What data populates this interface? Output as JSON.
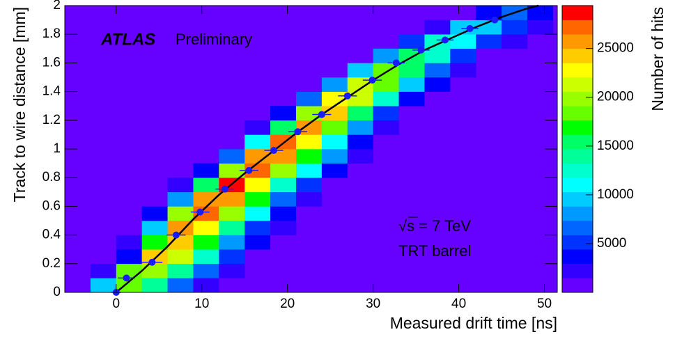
{
  "chart_data": {
    "type": "heatmap",
    "x_label": "Measured drift time [ns]",
    "y_label": "Track to wire distance [mm]",
    "z_label": "Number of hits",
    "annotations": [
      "ATLAS",
      "Preliminary",
      "√s = 7 TeV",
      "TRT barrel"
    ],
    "xlim": [
      -6,
      51.5
    ],
    "ylim": [
      0,
      2
    ],
    "zlim": [
      0,
      29400
    ],
    "xticks": [
      0,
      10,
      20,
      30,
      40,
      50
    ],
    "yticks": [
      0,
      0.2,
      0.4,
      0.6,
      0.8,
      1,
      1.2,
      1.4,
      1.6,
      1.8,
      2
    ],
    "zticks": [
      5000,
      10000,
      15000,
      20000,
      25000
    ],
    "xbins": [
      -6,
      -3,
      0,
      3,
      6,
      9,
      12,
      15,
      18,
      21,
      24,
      27,
      30,
      33,
      36,
      39,
      42,
      45,
      48,
      51
    ],
    "ybins": [
      0,
      0.1,
      0.2,
      0.3,
      0.4,
      0.5,
      0.6,
      0.7,
      0.8,
      0.9,
      1,
      1.1,
      1.2,
      1.3,
      1.4,
      1.5,
      1.6,
      1.7,
      1.8,
      1.9,
      2
    ],
    "palette": [
      "#6600ff",
      "#3300ff",
      "#0000ff",
      "#0033ff",
      "#0066ff",
      "#0099ff",
      "#00ccff",
      "#00ffff",
      "#00ffcc",
      "#00ff99",
      "#00ff66",
      "#00ff00",
      "#66ff00",
      "#99ff00",
      "#ccff00",
      "#ffff00",
      "#ffcc00",
      "#ff9900",
      "#ff6600",
      "#ff0000"
    ],
    "z": [
      [
        null,
        9300,
        18600,
        13900,
        7200,
        2500,
        630,
        null,
        null,
        null,
        null,
        null,
        null,
        null,
        null,
        null,
        null,
        null,
        null
      ],
      [
        null,
        1500,
        18000,
        20400,
        13400,
        6100,
        1900,
        null,
        null,
        null,
        null,
        null,
        null,
        null,
        null,
        null,
        null,
        null,
        null
      ],
      [
        null,
        1000,
        4200,
        24000,
        20600,
        12500,
        5000,
        1400,
        null,
        null,
        null,
        null,
        null,
        null,
        null,
        null,
        null,
        null,
        null
      ],
      [
        null,
        700,
        1900,
        17500,
        24200,
        17500,
        8800,
        3000,
        700,
        null,
        null,
        null,
        null,
        null,
        null,
        null,
        null,
        null,
        null
      ],
      [
        null,
        null,
        900,
        10100,
        25700,
        22600,
        13800,
        5700,
        1700,
        null,
        null,
        null,
        null,
        null,
        null,
        null,
        null,
        null,
        null
      ],
      [
        null,
        null,
        null,
        3400,
        19600,
        27400,
        20400,
        10600,
        3600,
        900,
        null,
        null,
        null,
        null,
        null,
        null,
        null,
        null,
        null
      ],
      [
        null,
        null,
        null,
        600,
        8100,
        26300,
        25500,
        16500,
        7300,
        2200,
        null,
        null,
        null,
        null,
        null,
        null,
        null,
        null,
        null
      ],
      [
        null,
        null,
        null,
        null,
        1800,
        14800,
        28000,
        22700,
        12900,
        5000,
        1300,
        null,
        null,
        null,
        null,
        null,
        null,
        null,
        null
      ],
      [
        null,
        null,
        null,
        null,
        null,
        3600,
        20200,
        27400,
        20200,
        10400,
        3600,
        900,
        null,
        null,
        null,
        null,
        null,
        null,
        null
      ],
      [
        null,
        null,
        null,
        null,
        null,
        null,
        7000,
        25500,
        26000,
        17100,
        7800,
        2500,
        null,
        null,
        null,
        null,
        null,
        null,
        null
      ],
      [
        null,
        null,
        null,
        null,
        null,
        null,
        1100,
        11100,
        27000,
        22100,
        11100,
        3200,
        600,
        null,
        null,
        null,
        null,
        null,
        null
      ],
      [
        null,
        null,
        null,
        null,
        null,
        null,
        null,
        2400,
        16100,
        25700,
        18200,
        7800,
        2000,
        null,
        null,
        null,
        null,
        null,
        null
      ],
      [
        null,
        null,
        null,
        null,
        null,
        null,
        null,
        null,
        4100,
        19800,
        23900,
        15000,
        5700,
        1300,
        null,
        null,
        null,
        null,
        null
      ],
      [
        null,
        null,
        null,
        null,
        null,
        null,
        null,
        null,
        null,
        6500,
        22100,
        21400,
        12000,
        4100,
        800,
        null,
        null,
        null,
        null
      ],
      [
        null,
        null,
        null,
        null,
        null,
        null,
        null,
        null,
        null,
        600,
        7700,
        21300,
        18700,
        9700,
        3100,
        600,
        null,
        null,
        null
      ],
      [
        null,
        null,
        null,
        null,
        null,
        null,
        null,
        null,
        null,
        null,
        1000,
        9100,
        19000,
        14800,
        7000,
        2000,
        null,
        null,
        null
      ],
      [
        null,
        null,
        null,
        null,
        null,
        null,
        null,
        null,
        null,
        null,
        null,
        1100,
        8800,
        16000,
        11800,
        5300,
        1400,
        null,
        null
      ],
      [
        null,
        null,
        null,
        null,
        null,
        null,
        null,
        null,
        null,
        null,
        null,
        null,
        null,
        4800,
        12700,
        10900,
        5600,
        1700,
        null
      ],
      [
        null,
        null,
        null,
        null,
        null,
        null,
        null,
        null,
        null,
        null,
        null,
        null,
        null,
        null,
        2500,
        9100,
        9000,
        5100,
        1800
      ],
      [
        null,
        null,
        null,
        null,
        null,
        null,
        null,
        null,
        null,
        null,
        null,
        null,
        null,
        null,
        null,
        600,
        3600,
        6000,
        4300
      ]
    ],
    "points": {
      "color": "#1a1aff",
      "x": [
        0,
        1.2,
        4.2,
        7,
        9.8,
        12.7,
        15.5,
        18.4,
        21.2,
        24,
        27,
        29.9,
        32.7,
        35.6,
        38.4,
        41.3,
        44.2
      ],
      "y": [
        0,
        0.1,
        0.21,
        0.4,
        0.56,
        0.72,
        0.85,
        0.99,
        1.12,
        1.24,
        1.37,
        1.48,
        1.6,
        1.69,
        1.76,
        1.84,
        1.9
      ],
      "xerr": [
        0.6,
        1,
        1.2,
        1.1,
        1.1,
        1.1,
        1.1,
        1.1,
        1.1,
        1.1,
        1.1,
        1.1,
        1,
        1,
        1,
        1,
        0.9
      ]
    },
    "fit": {
      "color": "#000000",
      "x": [
        0,
        3,
        6,
        9,
        12,
        15,
        18,
        21,
        24,
        27,
        30,
        33,
        36,
        39,
        42,
        45,
        48,
        49.3
      ],
      "y": [
        0,
        0.15,
        0.32,
        0.51,
        0.68,
        0.83,
        0.97,
        1.11,
        1.24,
        1.36,
        1.48,
        1.59,
        1.69,
        1.77,
        1.85,
        1.92,
        1.98,
        2
      ]
    }
  }
}
